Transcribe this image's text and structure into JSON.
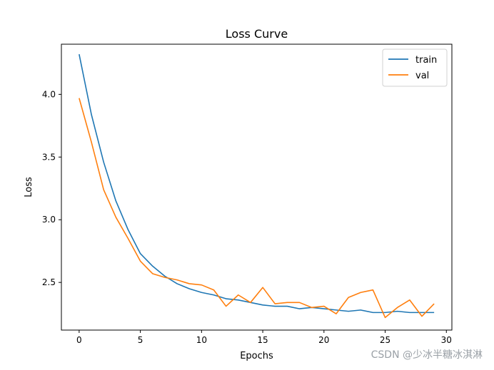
{
  "chart_data": {
    "type": "line",
    "title": "Loss Curve",
    "xlabel": "Epochs",
    "ylabel": "Loss",
    "xlim": [
      -1.45,
      30.45
    ],
    "ylim": [
      2.12,
      4.4
    ],
    "xticks": [
      0,
      5,
      10,
      15,
      20,
      25,
      30
    ],
    "yticks": [
      2.5,
      3.0,
      3.5,
      4.0
    ],
    "xtick_labels": [
      "0",
      "5",
      "10",
      "15",
      "20",
      "25",
      "30"
    ],
    "ytick_labels": [
      "2.5",
      "3.0",
      "3.5",
      "4.0"
    ],
    "grid": false,
    "legend_position": "top-right",
    "x": [
      0,
      1,
      2,
      3,
      4,
      5,
      6,
      7,
      8,
      9,
      10,
      11,
      12,
      13,
      14,
      15,
      16,
      17,
      18,
      19,
      20,
      21,
      22,
      23,
      24,
      25,
      26,
      27,
      28,
      29
    ],
    "series": [
      {
        "name": "train",
        "color": "#1f77b4",
        "values": [
          4.32,
          3.84,
          3.46,
          3.15,
          2.92,
          2.73,
          2.63,
          2.55,
          2.49,
          2.45,
          2.42,
          2.4,
          2.37,
          2.36,
          2.34,
          2.32,
          2.31,
          2.31,
          2.29,
          2.3,
          2.29,
          2.28,
          2.27,
          2.28,
          2.26,
          2.26,
          2.27,
          2.26,
          2.26,
          2.26
        ]
      },
      {
        "name": "val",
        "color": "#ff7f0e",
        "values": [
          3.97,
          3.62,
          3.24,
          3.02,
          2.85,
          2.67,
          2.57,
          2.54,
          2.52,
          2.49,
          2.48,
          2.44,
          2.31,
          2.4,
          2.34,
          2.46,
          2.33,
          2.34,
          2.34,
          2.3,
          2.31,
          2.25,
          2.38,
          2.42,
          2.44,
          2.22,
          2.3,
          2.36,
          2.23,
          2.33
        ]
      }
    ]
  },
  "watermark": "CSDN @少冰半糖冰淇淋"
}
